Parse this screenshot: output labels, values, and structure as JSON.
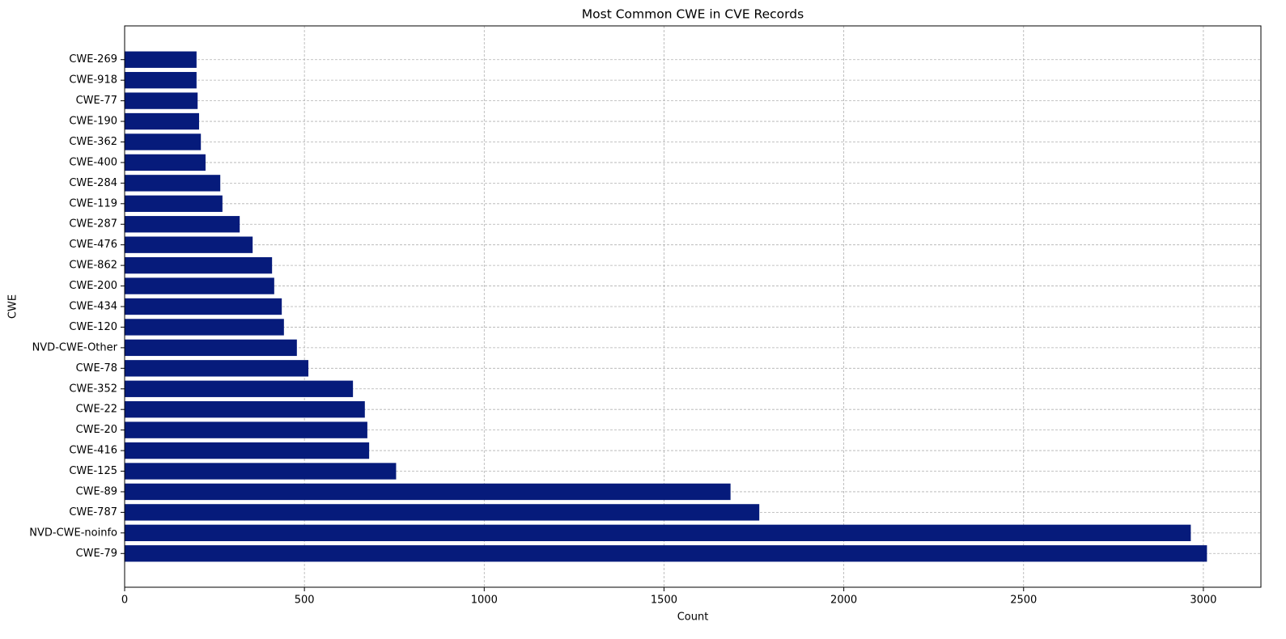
{
  "chart_data": {
    "type": "barh",
    "title": "Most Common CWE in CVE Records",
    "x_label": "Count",
    "y_label": "CWE",
    "categories": [
      "CWE-79",
      "NVD-CWE-noinfo",
      "CWE-787",
      "CWE-89",
      "CWE-125",
      "CWE-416",
      "CWE-20",
      "CWE-22",
      "CWE-352",
      "CWE-78",
      "NVD-CWE-Other",
      "CWE-120",
      "CWE-434",
      "CWE-200",
      "CWE-862",
      "CWE-476",
      "CWE-287",
      "CWE-119",
      "CWE-284",
      "CWE-400",
      "CWE-362",
      "CWE-190",
      "CWE-77",
      "CWE-918",
      "CWE-269"
    ],
    "values": [
      3010,
      2965,
      1765,
      1685,
      755,
      680,
      675,
      668,
      635,
      511,
      479,
      443,
      437,
      416,
      410,
      356,
      320,
      272,
      266,
      225,
      212,
      207,
      203,
      200,
      200
    ],
    "color": "#061b7b",
    "xlim": [
      0,
      3160
    ],
    "xticks": [
      0,
      500,
      1000,
      1500,
      2000,
      2500,
      3000
    ],
    "grid": true
  }
}
